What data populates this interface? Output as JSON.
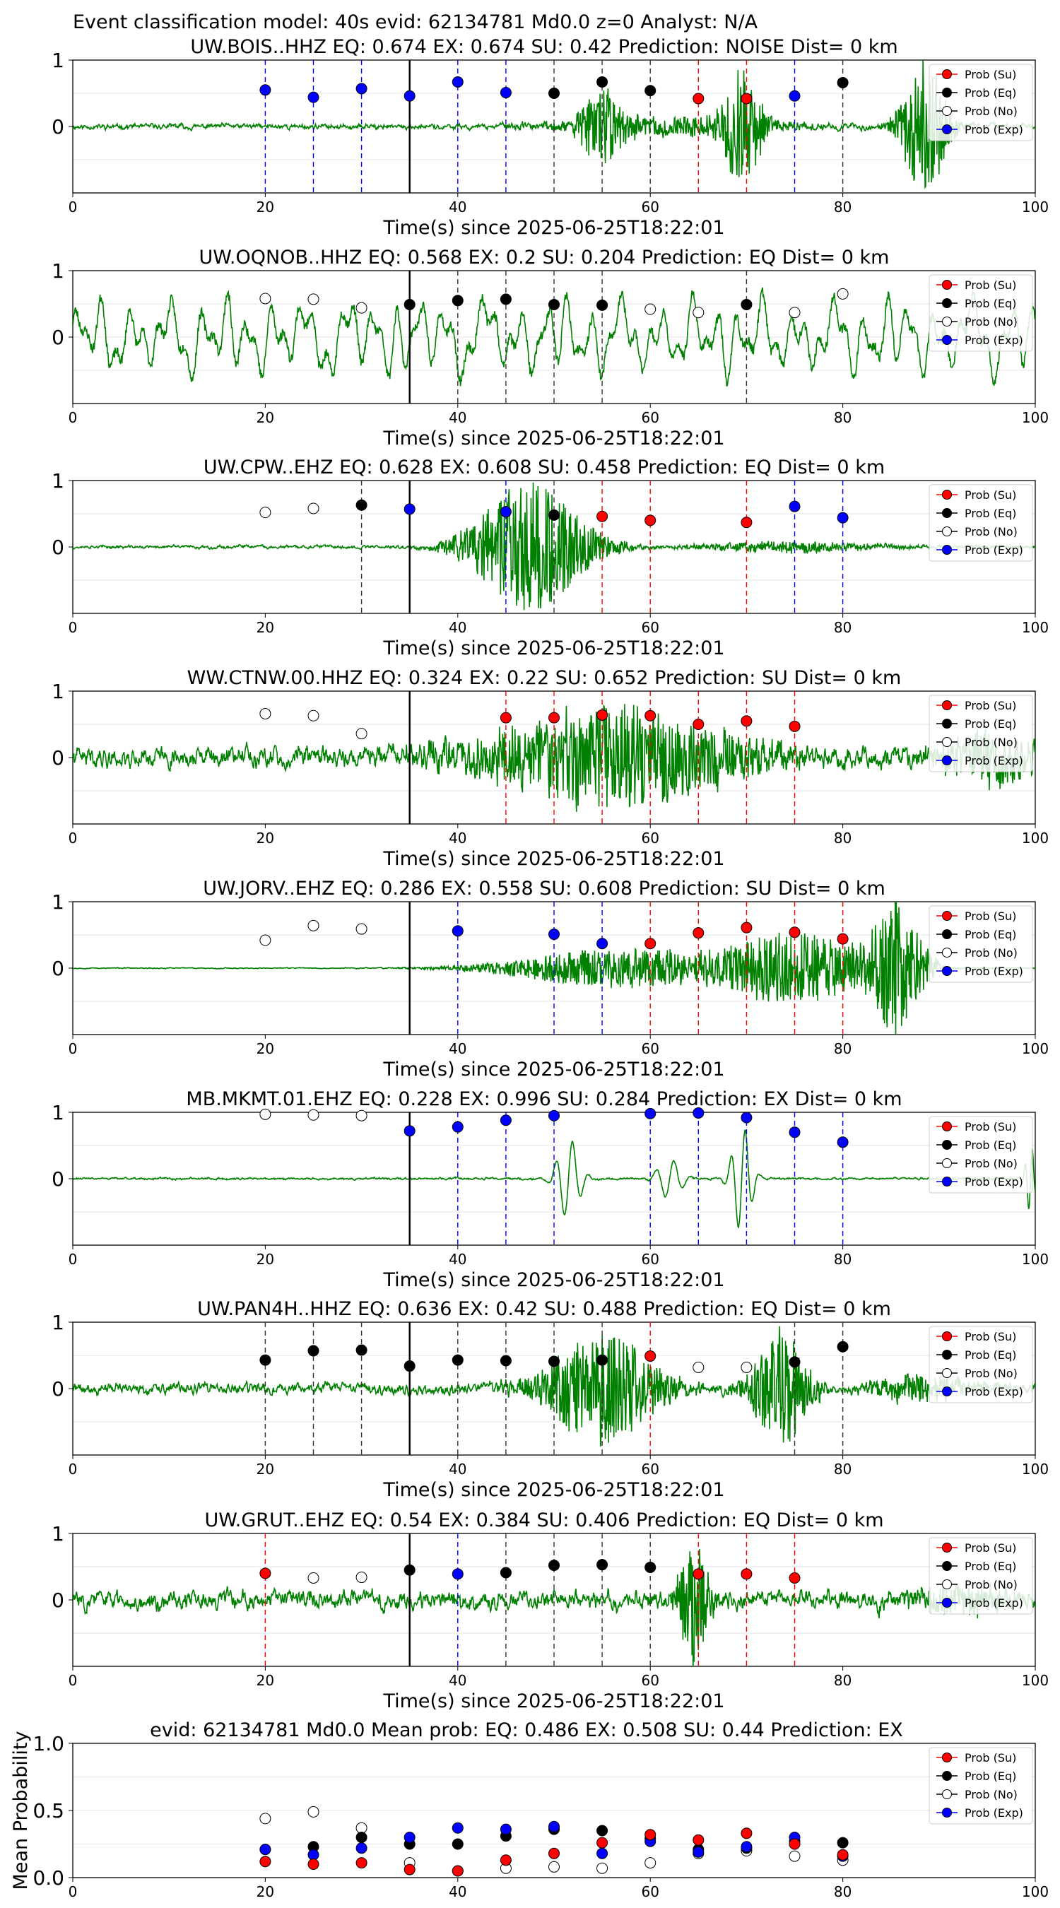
{
  "suptitle": "Event classification model: 40s evid: 62134781 Md0.0 z=0 Analyst: N/A",
  "colors": {
    "trace": "#008000",
    "su": "#ff0000",
    "eq": "#000000",
    "no": "#ffffff",
    "exp": "#0000ff",
    "pick_line": "#000000",
    "grid": "#e6e6e6"
  },
  "legend": {
    "placement": "top-right",
    "entries": [
      "Prob (Su)",
      "Prob (Eq)",
      "Prob (No)",
      "Prob (Exp)"
    ]
  },
  "chart_data": [
    {
      "type": "line",
      "title": "UW.BOIS..HHZ   EQ: 0.674  EX: 0.674  SU: 0.42   Prediction: NOISE    Dist= 0 km",
      "xlabel": "Time(s) since 2025-06-25T18:22:01",
      "ylabel": "",
      "xlim": [
        0,
        100
      ],
      "ylim": [
        -1,
        1
      ],
      "xticks": [
        "0",
        "20",
        "40",
        "60",
        "80",
        "100"
      ],
      "yticks": [
        "1",
        "0"
      ],
      "pick_time": 35,
      "waveform": {
        "kind": "noise-burst",
        "base": 0.05,
        "seed": 11,
        "bursts": [
          [
            55,
            0.5,
            2.5
          ],
          [
            69.5,
            0.9,
            2
          ],
          [
            88.5,
            1.0,
            2.5
          ],
          [
            62,
            0.15,
            12
          ]
        ]
      },
      "points": [
        {
          "t": 20,
          "p": 0.55,
          "c": "exp"
        },
        {
          "t": 25,
          "p": 0.44,
          "c": "exp"
        },
        {
          "t": 30,
          "p": 0.57,
          "c": "exp"
        },
        {
          "t": 35,
          "p": 0.46,
          "c": "exp"
        },
        {
          "t": 40,
          "p": 0.67,
          "c": "exp"
        },
        {
          "t": 45,
          "p": 0.51,
          "c": "exp"
        },
        {
          "t": 50,
          "p": 0.5,
          "c": "eq"
        },
        {
          "t": 55,
          "p": 0.67,
          "c": "eq"
        },
        {
          "t": 60,
          "p": 0.54,
          "c": "eq"
        },
        {
          "t": 65,
          "p": 0.42,
          "c": "su"
        },
        {
          "t": 70,
          "p": 0.42,
          "c": "su"
        },
        {
          "t": 75,
          "p": 0.46,
          "c": "exp"
        },
        {
          "t": 80,
          "p": 0.66,
          "c": "eq"
        }
      ]
    },
    {
      "type": "line",
      "title": "UW.OQNOB..HHZ   EQ: 0.568  EX: 0.2  SU: 0.204   Prediction: EQ    Dist= 0 km",
      "xlabel": "Time(s) since 2025-06-25T18:22:01",
      "ylabel": "",
      "xlim": [
        0,
        100
      ],
      "ylim": [
        -1,
        1
      ],
      "xticks": [
        "0",
        "20",
        "40",
        "60",
        "80",
        "100"
      ],
      "yticks": [
        "1",
        "0"
      ],
      "pick_time": 35,
      "waveform": {
        "kind": "oscillation",
        "base": 0.6,
        "seed": 23,
        "bursts": []
      },
      "points": [
        {
          "t": 20,
          "p": 0.58,
          "c": "no"
        },
        {
          "t": 25,
          "p": 0.57,
          "c": "no"
        },
        {
          "t": 30,
          "p": 0.44,
          "c": "no"
        },
        {
          "t": 35,
          "p": 0.49,
          "c": "eq"
        },
        {
          "t": 40,
          "p": 0.55,
          "c": "eq"
        },
        {
          "t": 45,
          "p": 0.57,
          "c": "eq"
        },
        {
          "t": 50,
          "p": 0.49,
          "c": "eq"
        },
        {
          "t": 55,
          "p": 0.48,
          "c": "eq"
        },
        {
          "t": 60,
          "p": 0.42,
          "c": "no"
        },
        {
          "t": 65,
          "p": 0.37,
          "c": "no"
        },
        {
          "t": 70,
          "p": 0.49,
          "c": "eq"
        },
        {
          "t": 75,
          "p": 0.37,
          "c": "no"
        },
        {
          "t": 80,
          "p": 0.65,
          "c": "no"
        }
      ]
    },
    {
      "type": "line",
      "title": "UW.CPW..EHZ   EQ: 0.628  EX: 0.608  SU: 0.458   Prediction: EQ    Dist= 0 km",
      "xlabel": "Time(s) since 2025-06-25T18:22:01",
      "ylabel": "",
      "xlim": [
        0,
        100
      ],
      "ylim": [
        -1,
        1
      ],
      "xticks": [
        "0",
        "20",
        "40",
        "60",
        "80",
        "100"
      ],
      "yticks": [
        "1",
        "0"
      ],
      "pick_time": 35,
      "waveform": {
        "kind": "noise-burst",
        "base": 0.03,
        "seed": 37,
        "bursts": [
          [
            47.5,
            1.0,
            6
          ],
          [
            75,
            0.08,
            10
          ]
        ]
      },
      "points": [
        {
          "t": 20,
          "p": 0.52,
          "c": "no"
        },
        {
          "t": 25,
          "p": 0.58,
          "c": "no"
        },
        {
          "t": 30,
          "p": 0.63,
          "c": "eq"
        },
        {
          "t": 35,
          "p": 0.57,
          "c": "exp"
        },
        {
          "t": 45,
          "p": 0.53,
          "c": "exp"
        },
        {
          "t": 50,
          "p": 0.48,
          "c": "eq"
        },
        {
          "t": 55,
          "p": 0.46,
          "c": "su"
        },
        {
          "t": 60,
          "p": 0.4,
          "c": "su"
        },
        {
          "t": 70,
          "p": 0.37,
          "c": "su"
        },
        {
          "t": 75,
          "p": 0.61,
          "c": "exp"
        },
        {
          "t": 80,
          "p": 0.44,
          "c": "exp"
        }
      ]
    },
    {
      "type": "line",
      "title": "WW.CTNW.00.HHZ   EQ: 0.324  EX: 0.22  SU: 0.652   Prediction: SU    Dist= 0 km",
      "xlabel": "Time(s) since 2025-06-25T18:22:01",
      "ylabel": "",
      "xlim": [
        0,
        100
      ],
      "ylim": [
        -1,
        1
      ],
      "xticks": [
        "0",
        "20",
        "40",
        "60",
        "80",
        "100"
      ],
      "yticks": [
        "1",
        "0"
      ],
      "pick_time": 35,
      "waveform": {
        "kind": "noise-burst",
        "base": 0.18,
        "seed": 41,
        "bursts": [
          [
            56,
            0.75,
            14
          ],
          [
            95,
            0.4,
            5
          ]
        ]
      },
      "points": [
        {
          "t": 20,
          "p": 0.66,
          "c": "no"
        },
        {
          "t": 25,
          "p": 0.63,
          "c": "no"
        },
        {
          "t": 30,
          "p": 0.36,
          "c": "no"
        },
        {
          "t": 45,
          "p": 0.6,
          "c": "su"
        },
        {
          "t": 50,
          "p": 0.6,
          "c": "su"
        },
        {
          "t": 55,
          "p": 0.64,
          "c": "su"
        },
        {
          "t": 60,
          "p": 0.63,
          "c": "su"
        },
        {
          "t": 65,
          "p": 0.5,
          "c": "su"
        },
        {
          "t": 70,
          "p": 0.55,
          "c": "su"
        },
        {
          "t": 75,
          "p": 0.47,
          "c": "su"
        }
      ]
    },
    {
      "type": "line",
      "title": "UW.JORV..EHZ   EQ: 0.286  EX: 0.558  SU: 0.608   Prediction: SU    Dist= 0 km",
      "xlabel": "Time(s) since 2025-06-25T18:22:01",
      "ylabel": "",
      "xlim": [
        0,
        100
      ],
      "ylim": [
        -1,
        1
      ],
      "xticks": [
        "0",
        "20",
        "40",
        "60",
        "80",
        "100"
      ],
      "yticks": [
        "1",
        "0"
      ],
      "pick_time": 35,
      "waveform": {
        "kind": "noise-burst",
        "base": 0.01,
        "seed": 53,
        "bursts": [
          [
            57,
            0.3,
            12
          ],
          [
            75,
            0.55,
            8
          ],
          [
            85.5,
            1.0,
            3
          ]
        ]
      },
      "points": [
        {
          "t": 20,
          "p": 0.42,
          "c": "no"
        },
        {
          "t": 25,
          "p": 0.64,
          "c": "no"
        },
        {
          "t": 30,
          "p": 0.59,
          "c": "no"
        },
        {
          "t": 40,
          "p": 0.56,
          "c": "exp"
        },
        {
          "t": 50,
          "p": 0.51,
          "c": "exp"
        },
        {
          "t": 55,
          "p": 0.37,
          "c": "exp"
        },
        {
          "t": 60,
          "p": 0.37,
          "c": "su"
        },
        {
          "t": 65,
          "p": 0.53,
          "c": "su"
        },
        {
          "t": 70,
          "p": 0.61,
          "c": "su"
        },
        {
          "t": 75,
          "p": 0.54,
          "c": "su"
        },
        {
          "t": 80,
          "p": 0.44,
          "c": "su"
        }
      ]
    },
    {
      "type": "line",
      "title": "MB.MKMT.01.EHZ   EQ: 0.228  EX: 0.996  SU: 0.284   Prediction: EX    Dist= 0 km",
      "xlabel": "Time(s) since 2025-06-25T18:22:01",
      "ylabel": "",
      "xlim": [
        0,
        100
      ],
      "ylim": [
        -1,
        1
      ],
      "xticks": [
        "0",
        "20",
        "40",
        "60",
        "80",
        "100"
      ],
      "yticks": [
        "1",
        "0"
      ],
      "pick_time": 35,
      "waveform": {
        "kind": "pulses",
        "base": 0.02,
        "seed": 61,
        "pulses": [
          [
            51.5,
            0.6,
            1.4
          ],
          [
            62,
            0.3,
            1.5
          ],
          [
            69.5,
            0.8,
            1.2
          ],
          [
            99.5,
            0.5,
            0.6
          ]
        ]
      },
      "points": [
        {
          "t": 20,
          "p": 0.97,
          "c": "no"
        },
        {
          "t": 25,
          "p": 0.96,
          "c": "no"
        },
        {
          "t": 30,
          "p": 0.95,
          "c": "no"
        },
        {
          "t": 35,
          "p": 0.72,
          "c": "exp"
        },
        {
          "t": 40,
          "p": 0.78,
          "c": "exp"
        },
        {
          "t": 45,
          "p": 0.88,
          "c": "exp"
        },
        {
          "t": 50,
          "p": 0.95,
          "c": "exp"
        },
        {
          "t": 60,
          "p": 0.98,
          "c": "exp"
        },
        {
          "t": 65,
          "p": 0.99,
          "c": "exp"
        },
        {
          "t": 70,
          "p": 0.92,
          "c": "exp"
        },
        {
          "t": 75,
          "p": 0.7,
          "c": "exp"
        },
        {
          "t": 80,
          "p": 0.55,
          "c": "exp"
        }
      ]
    },
    {
      "type": "line",
      "title": "UW.PAN4H..HHZ   EQ: 0.636  EX: 0.42  SU: 0.488   Prediction: EQ    Dist= 0 km",
      "xlabel": "Time(s) since 2025-06-25T18:22:01",
      "ylabel": "",
      "xlim": [
        0,
        100
      ],
      "ylim": [
        -1,
        1
      ],
      "xticks": [
        "0",
        "20",
        "40",
        "60",
        "80",
        "100"
      ],
      "yticks": [
        "1",
        "0"
      ],
      "pick_time": 35,
      "waveform": {
        "kind": "noise-burst",
        "base": 0.1,
        "seed": 71,
        "bursts": [
          [
            55,
            0.85,
            6
          ],
          [
            73.5,
            0.9,
            3
          ],
          [
            88,
            0.2,
            5
          ]
        ]
      },
      "points": [
        {
          "t": 20,
          "p": 0.43,
          "c": "eq"
        },
        {
          "t": 25,
          "p": 0.57,
          "c": "eq"
        },
        {
          "t": 30,
          "p": 0.58,
          "c": "eq"
        },
        {
          "t": 35,
          "p": 0.34,
          "c": "eq"
        },
        {
          "t": 40,
          "p": 0.43,
          "c": "eq"
        },
        {
          "t": 45,
          "p": 0.42,
          "c": "eq"
        },
        {
          "t": 50,
          "p": 0.41,
          "c": "eq"
        },
        {
          "t": 55,
          "p": 0.43,
          "c": "eq"
        },
        {
          "t": 60,
          "p": 0.49,
          "c": "su"
        },
        {
          "t": 65,
          "p": 0.32,
          "c": "no"
        },
        {
          "t": 70,
          "p": 0.32,
          "c": "no"
        },
        {
          "t": 75,
          "p": 0.4,
          "c": "eq"
        },
        {
          "t": 80,
          "p": 0.63,
          "c": "eq"
        }
      ]
    },
    {
      "type": "line",
      "title": "UW.GRUT..EHZ   EQ: 0.54  EX: 0.384  SU: 0.406   Prediction: EQ    Dist= 0 km",
      "xlabel": "Time(s) since 2025-06-25T18:22:01",
      "ylabel": "",
      "xlim": [
        0,
        100
      ],
      "ylim": [
        -1,
        1
      ],
      "xticks": [
        "0",
        "20",
        "40",
        "60",
        "80",
        "100"
      ],
      "yticks": [
        "1",
        "0"
      ],
      "pick_time": 35,
      "waveform": {
        "kind": "noise-burst",
        "base": 0.17,
        "seed": 83,
        "bursts": [
          [
            64.5,
            1.0,
            1.5
          ],
          [
            92,
            0.2,
            6
          ]
        ]
      },
      "points": [
        {
          "t": 20,
          "p": 0.4,
          "c": "su"
        },
        {
          "t": 25,
          "p": 0.33,
          "c": "no"
        },
        {
          "t": 30,
          "p": 0.34,
          "c": "no"
        },
        {
          "t": 35,
          "p": 0.45,
          "c": "eq"
        },
        {
          "t": 40,
          "p": 0.39,
          "c": "exp"
        },
        {
          "t": 45,
          "p": 0.41,
          "c": "eq"
        },
        {
          "t": 50,
          "p": 0.52,
          "c": "eq"
        },
        {
          "t": 55,
          "p": 0.53,
          "c": "eq"
        },
        {
          "t": 60,
          "p": 0.49,
          "c": "eq"
        },
        {
          "t": 65,
          "p": 0.39,
          "c": "su"
        },
        {
          "t": 70,
          "p": 0.39,
          "c": "su"
        },
        {
          "t": 75,
          "p": 0.33,
          "c": "su"
        }
      ]
    },
    {
      "type": "scatter",
      "title": "evid: 62134781  Md0.0   Mean prob:    EQ: 0.486  EX: 0.508  SU: 0.44   Prediction: EX",
      "xlabel": "",
      "ylabel": "Mean Probability",
      "xlim": [
        0,
        100
      ],
      "ylim": [
        0,
        1
      ],
      "xticks": [
        "0",
        "20",
        "40",
        "60",
        "80",
        "100"
      ],
      "yticks": [
        "0.0",
        "0.5",
        "1.0"
      ],
      "x": [
        20,
        25,
        30,
        35,
        40,
        45,
        50,
        55,
        60,
        65,
        70,
        75,
        80
      ],
      "series": [
        {
          "name": "Prob (No)",
          "c": "no",
          "values": [
            0.44,
            0.49,
            0.37,
            0.11,
            0.05,
            0.07,
            0.08,
            0.07,
            0.11,
            0.18,
            0.2,
            0.16,
            0.13
          ]
        },
        {
          "name": "Prob (Eq)",
          "c": "eq",
          "values": [
            0.21,
            0.23,
            0.3,
            0.25,
            0.25,
            0.31,
            0.36,
            0.35,
            0.29,
            0.21,
            0.22,
            0.27,
            0.26
          ]
        },
        {
          "name": "Prob (Exp)",
          "c": "exp",
          "values": [
            0.21,
            0.17,
            0.22,
            0.3,
            0.37,
            0.36,
            0.38,
            0.18,
            0.27,
            0.19,
            0.23,
            0.3,
            0.16
          ]
        },
        {
          "name": "Prob (Su)",
          "c": "su",
          "values": [
            0.12,
            0.1,
            0.11,
            0.06,
            0.05,
            0.13,
            0.18,
            0.26,
            0.32,
            0.28,
            0.33,
            0.25,
            0.17
          ]
        }
      ]
    }
  ]
}
